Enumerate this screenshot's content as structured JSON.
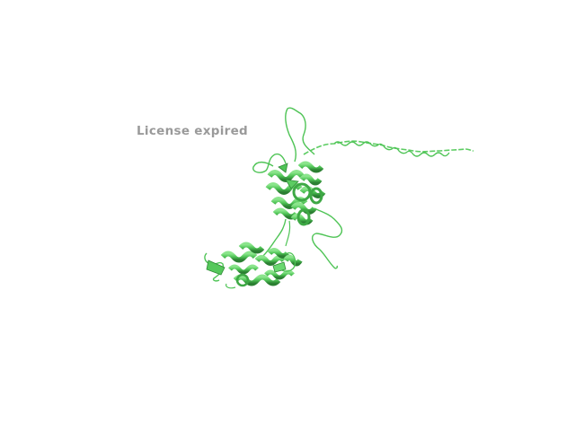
{
  "viewer": {
    "watermark": "License expired",
    "background_color": "#ffffff",
    "watermark_color": "#9a9a9a"
  },
  "structure": {
    "representation": "cartoon",
    "ribbon_color": "#4fc456",
    "ribbon_dark": "#2f8a36",
    "ribbon_light": "#7ee07f"
  }
}
